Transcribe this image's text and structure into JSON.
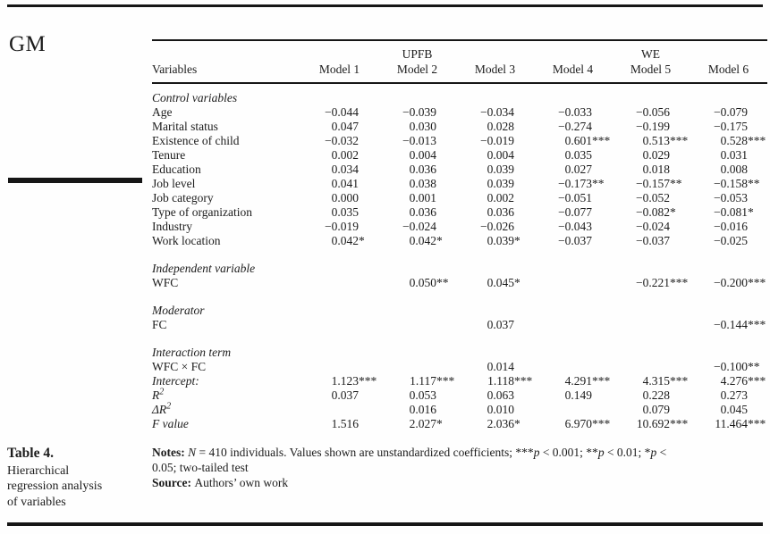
{
  "page": {
    "journal_mark": "GM",
    "colors": {
      "text": "#1c1c1c",
      "rule": "#161616",
      "background": "#fefefe"
    },
    "caption": {
      "title": "Table 4.",
      "lines": [
        "Hierarchical",
        "regression analysis",
        "of variables"
      ]
    }
  },
  "table": {
    "groups": [
      {
        "label": "UPFB"
      },
      {
        "label": "WE"
      }
    ],
    "columns": [
      "Variables",
      "Model 1",
      "Model 2",
      "Model 3",
      "Model 4",
      "Model 5",
      "Model 6"
    ],
    "rows": [
      {
        "type": "section",
        "label": "Control variables",
        "first": true
      },
      {
        "type": "data",
        "label": "Age",
        "values": [
          "−0.044",
          "−0.039",
          "−0.034",
          "−0.033",
          "−0.056",
          "−0.079"
        ]
      },
      {
        "type": "data",
        "label": "Marital status",
        "values": [
          "0.047",
          "0.030",
          "0.028",
          "−0.274",
          "−0.199",
          "−0.175"
        ]
      },
      {
        "type": "data",
        "label": "Existence of child",
        "values": [
          "−0.032",
          "−0.013",
          "−0.019",
          "0.601***",
          "0.513***",
          "0.528***"
        ]
      },
      {
        "type": "data",
        "label": "Tenure",
        "values": [
          "0.002",
          "0.004",
          "0.004",
          "0.035",
          "0.029",
          "0.031"
        ]
      },
      {
        "type": "data",
        "label": "Education",
        "values": [
          "0.034",
          "0.036",
          "0.039",
          "0.027",
          "0.018",
          "0.008"
        ]
      },
      {
        "type": "data",
        "label": "Job level",
        "values": [
          "0.041",
          "0.038",
          "0.039",
          "−0.173**",
          "−0.157**",
          "−0.158**"
        ]
      },
      {
        "type": "data",
        "label": "Job category",
        "values": [
          "0.000",
          "0.001",
          "0.002",
          "−0.051",
          "−0.052",
          "−0.053"
        ]
      },
      {
        "type": "data",
        "label": "Type of organization",
        "values": [
          "0.035",
          "0.036",
          "0.036",
          "−0.077",
          "−0.082*",
          "−0.081*"
        ]
      },
      {
        "type": "data",
        "label": "Industry",
        "values": [
          "−0.019",
          "−0.024",
          "−0.026",
          "−0.043",
          "−0.024",
          "−0.016"
        ]
      },
      {
        "type": "data",
        "label": "Work location",
        "values": [
          "0.042*",
          "0.042*",
          "0.039*",
          "−0.037",
          "−0.037",
          "−0.025"
        ]
      },
      {
        "type": "section",
        "label": "Independent variable"
      },
      {
        "type": "data",
        "label": "WFC",
        "values": [
          "",
          "0.050**",
          "0.045*",
          "",
          "−0.221***",
          "−0.200***"
        ]
      },
      {
        "type": "section",
        "label": "Moderator"
      },
      {
        "type": "data",
        "label": "FC",
        "values": [
          "",
          "",
          "0.037",
          "",
          "",
          "−0.144***"
        ]
      },
      {
        "type": "section",
        "label": "Interaction term"
      },
      {
        "type": "data",
        "label": "WFC × FC",
        "values": [
          "",
          "",
          "0.014",
          "",
          "",
          "−0.100**"
        ]
      },
      {
        "type": "data",
        "label": "Intercept:",
        "italic": true,
        "values": [
          "1.123***",
          "1.117***",
          "1.118***",
          "4.291***",
          "4.315***",
          "4.276***"
        ]
      },
      {
        "type": "data",
        "label": "R",
        "sup": "2",
        "italic": true,
        "values": [
          "0.037",
          "0.053",
          "0.063",
          "0.149",
          "0.228",
          "0.273"
        ]
      },
      {
        "type": "data",
        "label": "ΔR",
        "sup": "2",
        "italic": true,
        "values": [
          "",
          "0.016",
          "0.010",
          "",
          "0.079",
          "0.045"
        ]
      },
      {
        "type": "data",
        "label": "F value",
        "italic": true,
        "values": [
          "1.516",
          "2.027*",
          "2.036*",
          "6.970***",
          "10.692***",
          "11.464***"
        ]
      }
    ]
  },
  "notes": {
    "lines": [
      [
        {
          "t": "Notes: ",
          "s": "b"
        },
        {
          "t": "N",
          "s": "i"
        },
        {
          "t": " = 410 individuals. Values shown are unstandardized coefficients; ***",
          "s": "n"
        },
        {
          "t": "p",
          "s": "i"
        },
        {
          "t": " < 0.001; **",
          "s": "n"
        },
        {
          "t": "p",
          "s": "i"
        },
        {
          "t": " < 0.01; *",
          "s": "n"
        },
        {
          "t": "p",
          "s": "i"
        },
        {
          "t": " <",
          "s": "n"
        }
      ],
      [
        {
          "t": "0.05; two-tailed test",
          "s": "n"
        }
      ],
      [
        {
          "t": "Source: ",
          "s": "b"
        },
        {
          "t": "Authors’ own work",
          "s": "n"
        }
      ]
    ]
  }
}
